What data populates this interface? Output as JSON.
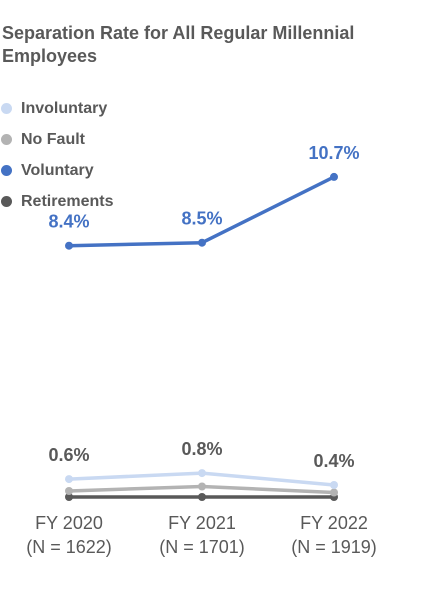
{
  "chart_data": {
    "type": "line",
    "title": "Separation Rate for All Regular Millennial Employees",
    "categories": [
      [
        "FY 2020",
        "(N = 1622)"
      ],
      [
        "FY 2021",
        "(N = 1701)"
      ],
      [
        "FY 2022",
        "(N = 1919)"
      ]
    ],
    "ylim": [
      0,
      12
    ],
    "grid": false,
    "legend_position": "top-left",
    "series": [
      {
        "name": "Involuntary",
        "color": "#c9d9f2",
        "values": [
          0.6,
          0.8,
          0.4
        ],
        "labels": [
          "0.6%",
          "0.8%",
          "0.4%"
        ]
      },
      {
        "name": "No Fault",
        "color": "#b3b3b3",
        "values": [
          0.2,
          0.35,
          0.15
        ],
        "labels": null
      },
      {
        "name": "Voluntary",
        "color": "#4472c4",
        "values": [
          8.4,
          8.5,
          10.7
        ],
        "labels": [
          "8.4%",
          "8.5%",
          "10.7%"
        ]
      },
      {
        "name": "Retirements",
        "color": "#595959",
        "values": [
          0.0,
          0.0,
          0.0
        ],
        "labels": null
      }
    ]
  }
}
